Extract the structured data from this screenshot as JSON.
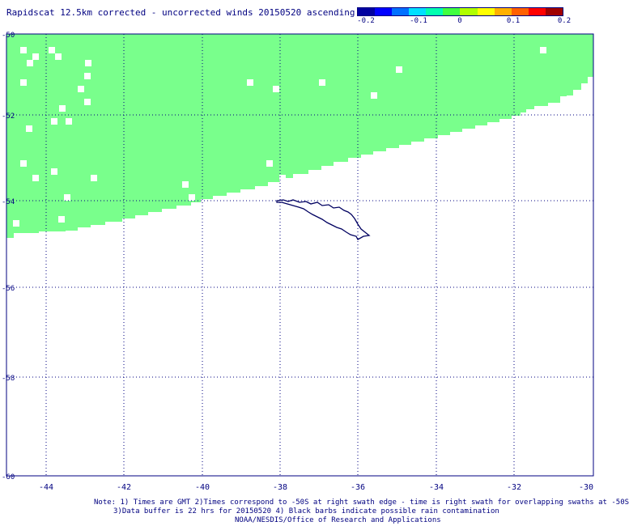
{
  "title": "Rapidscat 12.5km corrected - uncorrected winds 20150520 ascending",
  "colorbar": {
    "colors": [
      "#0000a0",
      "#0000ff",
      "#0070ff",
      "#00e0ff",
      "#00ffb0",
      "#40ff40",
      "#b0ff00",
      "#ffff00",
      "#ffb000",
      "#ff6000",
      "#ff0000",
      "#a00000"
    ],
    "labels": [
      "-0.2",
      "-0.1",
      "0",
      "0.1",
      "0.2"
    ]
  },
  "map": {
    "x_labels": [
      "-44",
      "-42",
      "-40",
      "-38",
      "-36",
      "-34",
      "-32",
      "-30"
    ],
    "y_labels": [
      "-50",
      "-52",
      "-54",
      "-56",
      "-58",
      "-60"
    ],
    "swath_color": "#79ff8c",
    "coast_color": "#000060"
  },
  "notes": {
    "line1": "Note: 1) Times are GMT 2)Times correspond to -50S at right swath edge - time is right swath for overlapping swaths at -50S",
    "line2": "3)Data buffer is 22 hrs for 20150520 4) Black barbs indicate possible rain contamination",
    "line3": "NOAA/NESDIS/Office of Research and Applications"
  }
}
